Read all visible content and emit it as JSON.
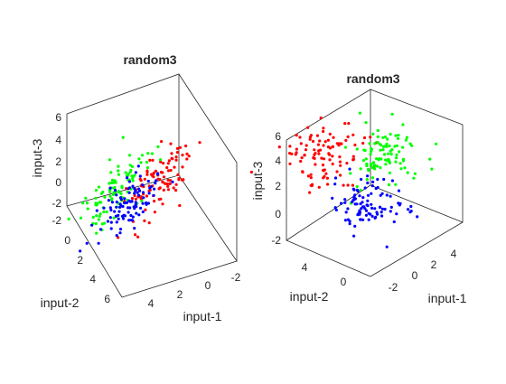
{
  "chart_data": [
    {
      "type": "scatter3d",
      "title": "random3",
      "xlabel": "input-1",
      "ylabel": "input-2",
      "zlabel": "input-3",
      "xlim": [
        -3,
        7
      ],
      "ylim": [
        -2,
        7
      ],
      "zlim": [
        -2.5,
        7
      ],
      "x_ticks": [
        "-2",
        "0",
        "2",
        "4"
      ],
      "y_ticks": [
        "-2",
        "0",
        "2",
        "4",
        "6"
      ],
      "z_ticks": [
        "-2",
        "0",
        "2",
        "4",
        "6"
      ],
      "grid": false,
      "series": [
        {
          "color": "#ff0000",
          "center": [
            0.5,
            1.5,
            1.5
          ],
          "spread": [
            1.0,
            1.2,
            1.0
          ],
          "count": 100
        },
        {
          "color": "#00ff00",
          "center": [
            4.0,
            1.0,
            1.5
          ],
          "spread": [
            1.0,
            1.2,
            1.0
          ],
          "count": 100
        },
        {
          "color": "#0000ff",
          "center": [
            2.5,
            1.5,
            0.5
          ],
          "spread": [
            0.9,
            1.0,
            0.8
          ],
          "count": 100
        }
      ]
    },
    {
      "type": "scatter3d",
      "title": "random3",
      "xlabel": "input-1",
      "ylabel": "input-2",
      "zlabel": "input-3",
      "xlim": [
        -3,
        5
      ],
      "ylim": [
        -2,
        6
      ],
      "zlim": [
        -2.5,
        8
      ],
      "x_ticks": [
        "-2",
        "0",
        "2",
        "4"
      ],
      "y_ticks": [
        "0",
        "4"
      ],
      "z_ticks": [
        "-2",
        "0",
        "2",
        "4",
        "6"
      ],
      "grid": false,
      "series": [
        {
          "color": "#ff0000",
          "center": [
            0.5,
            4.5,
            5.0
          ],
          "spread": [
            1.0,
            1.2,
            1.0
          ],
          "count": 100
        },
        {
          "color": "#00ff00",
          "center": [
            2.0,
            1.0,
            4.0
          ],
          "spread": [
            1.0,
            1.2,
            1.0
          ],
          "count": 100
        },
        {
          "color": "#0000ff",
          "center": [
            0.5,
            0.5,
            -1.0
          ],
          "spread": [
            1.0,
            1.0,
            0.9
          ],
          "count": 100
        }
      ]
    }
  ]
}
